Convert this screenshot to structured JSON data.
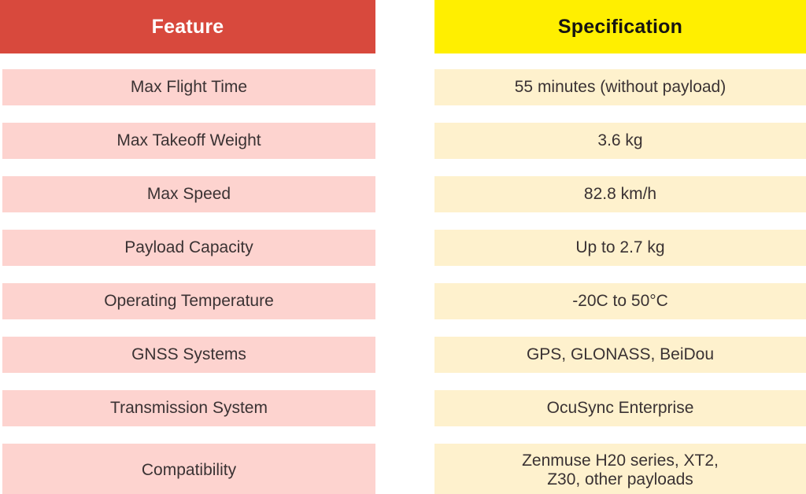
{
  "headers": {
    "feature": "Feature",
    "specification": "Specification"
  },
  "rows": [
    {
      "feature": "Max Flight Time",
      "spec": "55 minutes (without payload)"
    },
    {
      "feature": "Max Takeoff Weight",
      "spec": "3.6 kg"
    },
    {
      "feature": "Max Speed",
      "spec": "82.8 km/h"
    },
    {
      "feature": "Payload Capacity",
      "spec": "Up to 2.7 kg"
    },
    {
      "feature": "Operating Temperature",
      "spec": "-20C to 50°C"
    },
    {
      "feature": "GNSS Systems",
      "spec": "GPS, GLONASS, BeiDou"
    },
    {
      "feature": "Transmission System",
      "spec": "OcuSync Enterprise"
    },
    {
      "feature": "Compatibility",
      "spec": "Zenmuse H20 series, XT2, Z30, other payloads"
    }
  ],
  "colors": {
    "feature_header_bg": "#d8493d",
    "feature_header_text": "#ffffff",
    "spec_header_bg": "#ffef00",
    "spec_header_text": "#161412",
    "feature_row_bg": "#fdd3cf",
    "spec_row_bg": "#fef1cd",
    "row_text": "#3a3233"
  },
  "chart_data": {
    "type": "table",
    "title": "",
    "columns": [
      "Feature",
      "Specification"
    ],
    "rows": [
      [
        "Max Flight Time",
        "55 minutes (without payload)"
      ],
      [
        "Max Takeoff Weight",
        "3.6 kg"
      ],
      [
        "Max Speed",
        "82.8 km/h"
      ],
      [
        "Payload Capacity",
        "Up to 2.7 kg"
      ],
      [
        "Operating Temperature",
        "-20C to 50°C"
      ],
      [
        "GNSS Systems",
        "GPS, GLONASS, BeiDou"
      ],
      [
        "Transmission System",
        "OcuSync Enterprise"
      ],
      [
        "Compatibility",
        "Zenmuse H20 series, XT2, Z30, other payloads"
      ]
    ],
    "layout_hints": {
      "feature_header_color": "#d8493d",
      "spec_header_color": "#ffef00",
      "feature_row_color": "#fdd3cf",
      "spec_row_color": "#fef1cd",
      "two_detached_columns": true,
      "cell_text_align": "center"
    }
  }
}
